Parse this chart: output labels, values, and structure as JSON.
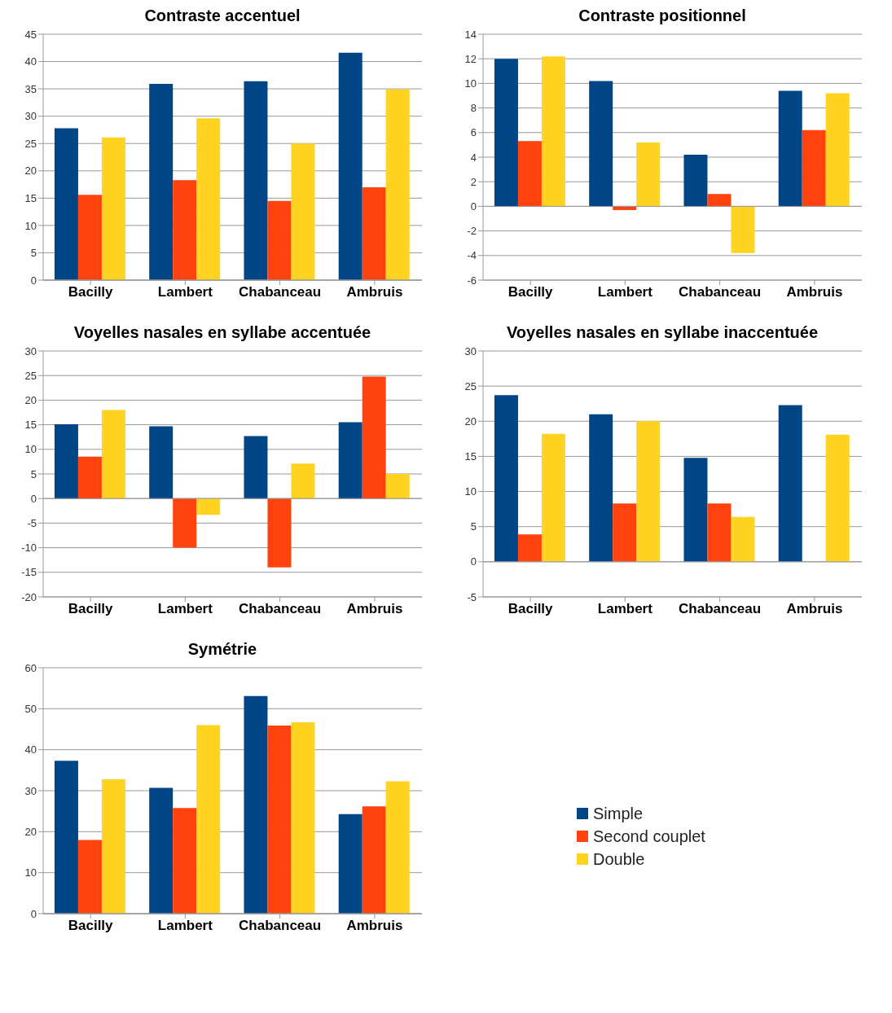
{
  "chart_data": [
    {
      "type": "bar",
      "title": "Contraste accentuel",
      "categories": [
        "Bacilly",
        "Lambert",
        "Chabanceau",
        "Ambruis"
      ],
      "ylim": [
        0,
        45
      ],
      "yticks": [
        0,
        5,
        10,
        15,
        20,
        25,
        30,
        35,
        40,
        45
      ],
      "grid": "y",
      "series": [
        {
          "color": "#004586",
          "values": [
            27.8,
            35.9,
            36.4,
            41.6
          ]
        },
        {
          "color": "#ff420e",
          "values": [
            15.6,
            18.3,
            14.5,
            17
          ]
        },
        {
          "color": "#ffd320",
          "values": [
            26.1,
            29.6,
            25,
            34.9
          ]
        }
      ]
    },
    {
      "type": "bar",
      "title": "Contraste positionnel",
      "categories": [
        "Bacilly",
        "Lambert",
        "Chabanceau",
        "Ambruis"
      ],
      "ylim": [
        -6,
        14
      ],
      "yticks": [
        -6,
        -4,
        -2,
        0,
        2,
        4,
        6,
        8,
        10,
        12,
        14
      ],
      "grid": "y",
      "series": [
        {
          "color": "#004586",
          "values": [
            12,
            10.2,
            4.2,
            9.4
          ]
        },
        {
          "color": "#ff420e",
          "values": [
            5.3,
            -0.3,
            1,
            6.2
          ]
        },
        {
          "color": "#ffd320",
          "values": [
            12.2,
            5.2,
            -3.8,
            9.2
          ]
        }
      ]
    },
    {
      "type": "bar",
      "title": "Voyelles nasales en syllabe accentuée",
      "categories": [
        "Bacilly",
        "Lambert",
        "Chabanceau",
        "Ambruis"
      ],
      "ylim": [
        -20,
        30
      ],
      "yticks": [
        -20,
        -15,
        -10,
        -5,
        0,
        5,
        10,
        15,
        20,
        25,
        30
      ],
      "grid": "y",
      "series": [
        {
          "color": "#004586",
          "values": [
            15.1,
            14.7,
            12.7,
            15.5
          ]
        },
        {
          "color": "#ff420e",
          "values": [
            8.5,
            -10,
            -14,
            24.8
          ]
        },
        {
          "color": "#ffd320",
          "values": [
            18,
            -3.3,
            7.1,
            5
          ]
        }
      ]
    },
    {
      "type": "bar",
      "title": "Voyelles nasales en syllabe inaccentuée",
      "categories": [
        "Bacilly",
        "Lambert",
        "Chabanceau",
        "Ambruis"
      ],
      "ylim": [
        -5,
        30
      ],
      "yticks": [
        -5,
        0,
        5,
        10,
        15,
        20,
        25,
        30
      ],
      "grid": "y",
      "series": [
        {
          "color": "#004586",
          "values": [
            23.7,
            21,
            14.8,
            22.3
          ]
        },
        {
          "color": "#ff420e",
          "values": [
            3.9,
            8.3,
            8.3,
            0
          ]
        },
        {
          "color": "#ffd320",
          "values": [
            18.2,
            20,
            6.4,
            18.1
          ]
        }
      ]
    },
    {
      "type": "bar",
      "title": "Symétrie",
      "categories": [
        "Bacilly",
        "Lambert",
        "Chabanceau",
        "Ambruis"
      ],
      "ylim": [
        0,
        60
      ],
      "yticks": [
        0,
        10,
        20,
        30,
        40,
        50,
        60
      ],
      "grid": "y",
      "legend": "right",
      "series": [
        {
          "name": "Simple",
          "color": "#004586",
          "values": [
            37.3,
            30.7,
            53.1,
            24.3
          ]
        },
        {
          "name": "Second couplet",
          "color": "#ff420e",
          "values": [
            18,
            25.8,
            45.9,
            26.2
          ]
        },
        {
          "name": "Double",
          "color": "#ffd320",
          "values": [
            32.8,
            46,
            46.7,
            32.3
          ]
        }
      ]
    }
  ]
}
